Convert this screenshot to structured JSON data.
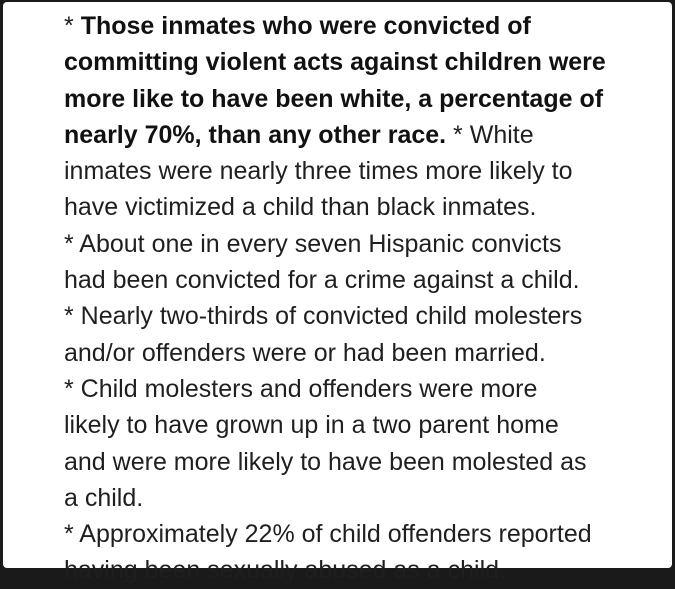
{
  "lines": [
    [
      {
        "text": "* ",
        "bold": false
      },
      {
        "text": "Those inmates who were convicted of",
        "bold": true
      }
    ],
    [
      {
        "text": "committing violent acts against children were",
        "bold": true
      }
    ],
    [
      {
        "text": "more like to have been white, a percentage of",
        "bold": true
      }
    ],
    [
      {
        "text": "nearly 70%, than any other race.",
        "bold": true
      },
      {
        "text": " * White",
        "bold": false
      }
    ],
    [
      {
        "text": "inmates were nearly three times more likely to",
        "bold": false
      }
    ],
    [
      {
        "text": "have victimized a child than black inmates.",
        "bold": false
      }
    ],
    [
      {
        "text": "* About one in every seven Hispanic convicts",
        "bold": false
      }
    ],
    [
      {
        "text": "had been convicted for a crime against a child.",
        "bold": false
      }
    ],
    [
      {
        "text": "* Nearly two-thirds of convicted child molesters",
        "bold": false
      }
    ],
    [
      {
        "text": "and/or offenders were or had been married.",
        "bold": false
      }
    ],
    [
      {
        "text": "* Child molesters and offenders were more",
        "bold": false
      }
    ],
    [
      {
        "text": "likely to have grown up in a two parent home",
        "bold": false
      }
    ],
    [
      {
        "text": "and were more likely to have been molested as",
        "bold": false
      }
    ],
    [
      {
        "text": "a child.",
        "bold": false
      }
    ],
    [
      {
        "text": "* Approximately 22% of child offenders reported",
        "bold": false
      }
    ],
    [
      {
        "text": "having been sexually abused as a child.",
        "bold": false
      }
    ]
  ]
}
